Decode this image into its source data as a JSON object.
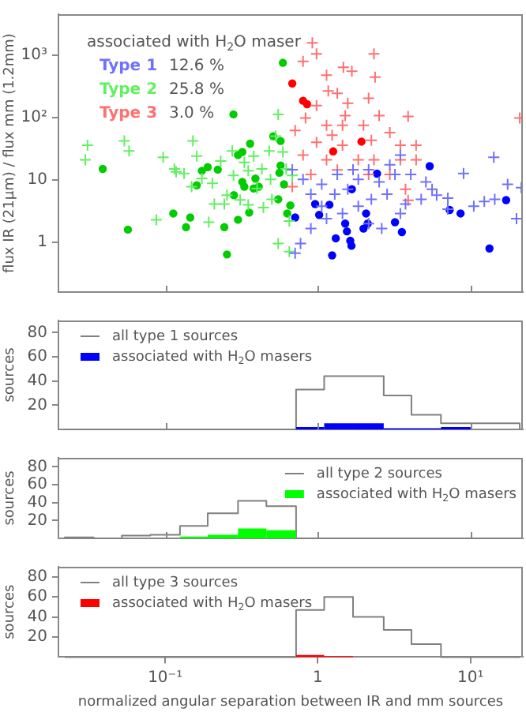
{
  "chart_data": [
    {
      "type": "scatter",
      "ylabel": "flux IR (21μm) / flux mm (1.2mm)",
      "legend_title": "associated with H$_{2}$O maser",
      "log": "xy",
      "xlim": [
        0.02,
        22
      ],
      "ylim": [
        0.16,
        4500
      ],
      "xticks": [
        {
          "value": 0.1,
          "label": null
        },
        {
          "value": 1,
          "label": null
        },
        {
          "value": 10,
          "label": null
        }
      ],
      "yticks": [
        1,
        10,
        {
          "value": 100,
          "label": "10²"
        },
        {
          "value": 1000,
          "label": "10³"
        }
      ],
      "tick_labels": "y",
      "grid": false,
      "legend": "top left",
      "annotations": [
        "12.6 %",
        "25.8 %",
        "3.0 %"
      ],
      "series": [
        {
          "name": "Type 1",
          "color": "#7070ff",
          "marker": "cross",
          "x": [
            0.68,
            0.8,
            0.9,
            1.06,
            1.34,
            1.57,
            1.84,
            2.15,
            2.52,
            3.2,
            4.06,
            5.1,
            6.0,
            7.1,
            9.0,
            12.3,
            14.2,
            17.5,
            21.5,
            20,
            14.4,
            10.5,
            7.1,
            4.75,
            3.75,
            2.84,
            2.24,
            1.84,
            1.45,
            1.14,
            0.9,
            0.77,
            0.71,
            1.29,
            1.06,
            2.15,
            2.62,
            3.47,
            5.6,
            1.7,
            2.96,
            3.47
          ],
          "values": [
            14.6,
            10.2,
            5.9,
            8.5,
            12.2,
            7.1,
            10.2,
            14.6,
            9.3,
            12.2,
            12.2,
            9.3,
            5.7,
            5.1,
            12.7,
            4.5,
            23,
            8.5,
            7.5,
            2.4,
            4.9,
            3.8,
            3.4,
            4.9,
            4.1,
            5.9,
            4.9,
            3.8,
            2.9,
            2.4,
            1.66,
            0.96,
            0.67,
            5.9,
            3.8,
            2.0,
            1.66,
            2.9,
            7.1,
            14.6,
            17.5,
            25
          ]
        },
        {
          "name": "Type 2",
          "color": "#60f060",
          "marker": "cross",
          "x": [
            0.031,
            0.03,
            0.054,
            0.058,
            0.0875,
            0.097,
            0.115,
            0.118,
            0.133,
            0.152,
            0.161,
            0.174,
            0.193,
            0.204,
            0.231,
            0.244,
            0.254,
            0.275,
            0.31,
            0.33,
            0.35,
            0.38,
            0.4,
            0.43,
            0.44,
            0.48,
            0.5,
            0.53,
            0.55,
            0.55,
            0.59,
            0.62,
            0.65,
            0.68,
            0.65,
            0.28,
            0.21,
            0.149,
            0.35,
            0.49
          ],
          "values": [
            36,
            21,
            42,
            29,
            2.3,
            23,
            15,
            13.4,
            12.7,
            42,
            24,
            10.6,
            2.1,
            8.8,
            20,
            4.1,
            5.7,
            29,
            4.8,
            19,
            14,
            24,
            7.3,
            15,
            3.6,
            29,
            4.9,
            50,
            112,
            0.96,
            28,
            15,
            0.71,
            11.8,
            2.2,
            11.8,
            4.1,
            7.8,
            4.0,
            10.2
          ]
        },
        {
          "name": "Type 3",
          "color": "#ff7070",
          "marker": "cross",
          "x": [
            0.92,
            2.33,
            0.98,
            0.8,
            1.14,
            1.47,
            1.67,
            2.37,
            1.17,
            1.34,
            1.57,
            2.15,
            0.98,
            0.83,
            0.71,
            1.14,
            1.51,
            1.99,
            2.52,
            3.9,
            2.96,
            3.47,
            4.4,
            2.24,
            1.45,
            0.98,
            0.8,
            1.14,
            1.84,
            2.33,
            3.47,
            4.4,
            2.96,
            3.75,
            3.9,
            2.15,
            1.34,
            0.9,
            0.68,
            1.45,
            1.24,
            21
          ],
          "values": [
            1570,
            1040,
            1040,
            790,
            475,
            635,
            550,
            443,
            266,
            243,
            169,
            203,
            155,
            98,
            62,
            75,
            107,
            75,
            107,
            104,
            57,
            36,
            36,
            43,
            36,
            40,
            25,
            21,
            21,
            21,
            21,
            21,
            12.2,
            7.1,
            4.7,
            12.2,
            14.5,
            12.2,
            7.8,
            75,
            52,
            98
          ]
        },
        {
          "color": "#0000ff",
          "marker": "circle",
          "x": [
            0.71,
            0.96,
            1.02,
            1.19,
            1.24,
            1.31,
            1.51,
            1.55,
            1.63,
            1.66,
            1.67,
            1.99,
            2.07,
            2.12,
            2.44,
            3.2,
            3.55,
            5.4,
            7.3,
            8.6,
            13.3,
            17.1
          ],
          "values": [
            2.5,
            4.1,
            2.75,
            4.0,
            0.62,
            1.16,
            2.0,
            1.5,
            1.06,
            0.88,
            7.1,
            1.66,
            2.9,
            2.0,
            12.6,
            2.1,
            1.46,
            16.6,
            3.3,
            2.9,
            0.8,
            4.75
          ]
        },
        {
          "color": "#00cc00",
          "marker": "circle",
          "x": [
            0.039,
            0.057,
            0.113,
            0.137,
            0.146,
            0.161,
            0.174,
            0.19,
            0.221,
            0.244,
            0.254,
            0.282,
            0.28,
            0.3,
            0.3,
            0.32,
            0.32,
            0.33,
            0.355,
            0.36,
            0.38,
            0.39,
            0.41,
            0.51,
            0.55,
            0.57,
            0.59,
            0.6,
            0.56,
            0.57,
            0.63,
            0.66
          ],
          "values": [
            15,
            1.6,
            2.9,
            1.75,
            2.5,
            8.2,
            14,
            16,
            14.6,
            1.75,
            0.64,
            5.7,
            112,
            2.3,
            25,
            28,
            9.3,
            7.8,
            3.0,
            38,
            7.3,
            10.5,
            7.8,
            50,
            4.9,
            42,
            750,
            8.5,
            13,
            17,
            2.9,
            3.9
          ]
        },
        {
          "color": "#ff0000",
          "marker": "circle",
          "x": [
            0.68,
            0.8,
            0.85,
            1.26,
            1.93
          ],
          "values": [
            350,
            185,
            163,
            28.6,
            41
          ]
        }
      ]
    },
    {
      "type": "histogram",
      "ylabel": "sources",
      "log": "x",
      "xlim": [
        0.02,
        22
      ],
      "ylim": [
        0,
        90
      ],
      "yticks": [
        20,
        40,
        60,
        80
      ],
      "xticks": [
        {
          "value": 0.1,
          "label": null
        },
        {
          "value": 1,
          "label": null
        },
        {
          "value": 10,
          "label": null
        }
      ],
      "tick_labels": "y",
      "grid": false,
      "legend": "top left",
      "bins": [
        0.022,
        0.034,
        0.052,
        0.08,
        0.125,
        0.19,
        0.3,
        0.46,
        0.72,
        1.1,
        1.7,
        2.7,
        4.1,
        6.4,
        10,
        15,
        21
      ],
      "series": [
        {
          "name": "all type 1 sources",
          "color": "#808080",
          "values": [
            0,
            0,
            0,
            0,
            0,
            0,
            0,
            0,
            33,
            44,
            44,
            28,
            12,
            5,
            5,
            5
          ]
        },
        {
          "name": "associated with H$_{2}$O masers",
          "color": "#0000ff",
          "values": [
            0,
            0,
            0,
            0,
            0,
            0,
            0,
            0,
            2,
            5,
            5,
            1,
            1,
            2,
            0,
            0
          ]
        }
      ]
    },
    {
      "type": "histogram",
      "ylabel": "sources",
      "log": "x",
      "xlim": [
        0.02,
        22
      ],
      "ylim": [
        0,
        90
      ],
      "yticks": [
        20,
        40,
        60,
        80
      ],
      "xticks": [
        {
          "value": 0.1,
          "label": null
        },
        {
          "value": 1,
          "label": null
        },
        {
          "value": 10,
          "label": null
        }
      ],
      "tick_labels": "y",
      "grid": false,
      "legend": "top right",
      "bins": [
        0.022,
        0.034,
        0.052,
        0.08,
        0.125,
        0.19,
        0.3,
        0.46,
        0.72,
        1.1,
        1.7,
        2.7,
        4.1,
        6.4,
        10,
        15,
        21
      ],
      "series": [
        {
          "name": "all type 2 sources",
          "color": "#808080",
          "values": [
            1,
            0,
            3,
            4,
            14,
            28,
            42,
            36,
            0,
            0,
            0,
            0,
            0,
            0,
            0,
            0
          ]
        },
        {
          "name": "associated with H$_{2}$O masers",
          "color": "#00ff00",
          "values": [
            0,
            0,
            0,
            0,
            2,
            4,
            11,
            9,
            0,
            0,
            0,
            0,
            0,
            0,
            0,
            0
          ]
        }
      ]
    },
    {
      "type": "histogram",
      "ylabel": "sources",
      "xlabel": "normalized angular separation between IR and mm sources",
      "log": "x",
      "xlim": [
        0.02,
        22
      ],
      "ylim": [
        0,
        90
      ],
      "yticks": [
        20,
        40,
        60,
        80
      ],
      "xticks": [
        {
          "value": 0.1,
          "label": "10⁻¹"
        },
        1,
        {
          "value": 10,
          "label": "10¹"
        }
      ],
      "grid": false,
      "legend": "top left",
      "bins": [
        0.022,
        0.034,
        0.052,
        0.08,
        0.125,
        0.19,
        0.3,
        0.46,
        0.72,
        1.1,
        1.7,
        2.7,
        4.1,
        6.4,
        10,
        15,
        21
      ],
      "series": [
        {
          "name": "all type 3 sources",
          "color": "#808080",
          "values": [
            0,
            0,
            0,
            0,
            0,
            0,
            0,
            0,
            47,
            60,
            40,
            27,
            13,
            0,
            0,
            0
          ]
        },
        {
          "name": "associated with H$_{2}$O masers",
          "color": "#ff0000",
          "values": [
            0,
            0,
            0,
            0,
            0,
            0,
            0,
            0,
            2,
            1,
            0,
            0,
            0,
            0,
            0,
            0
          ]
        }
      ]
    }
  ]
}
